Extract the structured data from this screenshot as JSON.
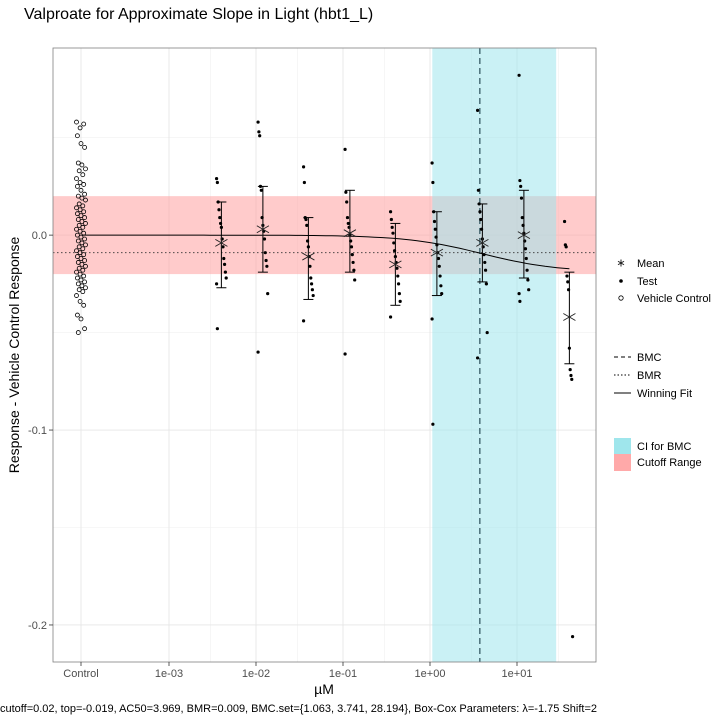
{
  "chart_data": {
    "type": "scatter",
    "title": "Valproate for Approximate Slope in Light (hbt1_L)",
    "xlabel": "µM",
    "ylabel": "Response - Vehicle Control Response",
    "x_scale": "log10",
    "x_tick_labels": [
      "Control",
      "1e-03",
      "1e-02",
      "1e-01",
      "1e+00",
      "1e+01"
    ],
    "y_tick_labels": [
      "0.0",
      "-0.1",
      "-0.2"
    ],
    "y_ticks": [
      0.0,
      -0.1,
      -0.2
    ],
    "ylim": [
      -0.219,
      0.096
    ],
    "grid": true,
    "legend_position": "right",
    "footer": "cutoff=0.02, top=-0.019, AC50=3.969, BMR=0.009, BMC.set={1.063, 3.741, 28.194}, Box-Cox Parameters: λ=-1.75 Shift=2",
    "bmc": 3.741,
    "bmr": 0.009,
    "bmc_ci": [
      1.063,
      28.194
    ],
    "cutoff_range": [
      -0.02,
      0.02
    ],
    "fit": {
      "top": -0.019,
      "ac50": 3.969,
      "n": 1
    },
    "legend": {
      "points": [
        {
          "label": "Mean",
          "symbol": "asterisk"
        },
        {
          "label": "Test",
          "symbol": "dot"
        },
        {
          "label": "Vehicle Control",
          "symbol": "circle"
        }
      ],
      "lines": [
        {
          "label": "BMC",
          "style": "dashed"
        },
        {
          "label": "BMR",
          "style": "dotted"
        },
        {
          "label": "Winning Fit",
          "style": "solid"
        }
      ],
      "fills": [
        {
          "label": "CI for BMC",
          "color": "#9fe6ec"
        },
        {
          "label": "Cutoff Range",
          "color": "#ffa9a9"
        }
      ]
    },
    "colors": {
      "ci_fill": "#9fe6ec",
      "cutoff_fill": "#ffa9a9",
      "bmc_line": "#2a4f5a"
    },
    "means": [
      {
        "x": 0.004,
        "mean": -0.004,
        "low": -0.027,
        "high": 0.017
      },
      {
        "x": 0.012,
        "mean": 0.003,
        "low": -0.019,
        "high": 0.025
      },
      {
        "x": 0.04,
        "mean": -0.011,
        "low": -0.033,
        "high": 0.009
      },
      {
        "x": 0.12,
        "mean": 0.001,
        "low": -0.019,
        "high": 0.023
      },
      {
        "x": 0.4,
        "mean": -0.015,
        "low": -0.036,
        "high": 0.006
      },
      {
        "x": 1.2,
        "mean": -0.009,
        "low": -0.031,
        "high": 0.012
      },
      {
        "x": 4.0,
        "mean": -0.004,
        "low": -0.024,
        "high": 0.016
      },
      {
        "x": 12.0,
        "mean": 0.0,
        "low": -0.022,
        "high": 0.023
      },
      {
        "x": 40.0,
        "mean": -0.042,
        "low": -0.066,
        "high": -0.019
      }
    ],
    "test_points": [
      {
        "x": 0.004,
        "y": [
          0.029,
          0.027,
          0.017,
          0.013,
          0.009,
          0.006,
          0.004,
          -0.002,
          -0.006,
          -0.012,
          -0.015,
          -0.019,
          -0.022,
          -0.025,
          -0.048
        ]
      },
      {
        "x": 0.012,
        "y": [
          0.058,
          0.053,
          0.051,
          0.025,
          0.023,
          0.009,
          0.005,
          0.002,
          -0.002,
          -0.009,
          -0.013,
          -0.016,
          -0.03,
          -0.06
        ]
      },
      {
        "x": 0.04,
        "y": [
          0.035,
          0.027,
          0.009,
          0.008,
          0.005,
          -0.003,
          -0.006,
          -0.011,
          -0.016,
          -0.022,
          -0.025,
          -0.028,
          -0.031,
          -0.044
        ]
      },
      {
        "x": 0.12,
        "y": [
          0.044,
          0.022,
          0.017,
          0.009,
          0.006,
          0.004,
          0.0,
          -0.003,
          -0.006,
          -0.01,
          -0.014,
          -0.018,
          -0.023,
          -0.061
        ]
      },
      {
        "x": 0.4,
        "y": [
          0.012,
          0.008,
          0.004,
          0.001,
          -0.004,
          -0.008,
          -0.011,
          -0.014,
          -0.017,
          -0.021,
          -0.025,
          -0.03,
          -0.034,
          -0.042
        ]
      },
      {
        "x": 1.2,
        "y": [
          0.037,
          0.027,
          0.012,
          0.007,
          0.003,
          -0.001,
          -0.005,
          -0.009,
          -0.012,
          -0.016,
          -0.021,
          -0.026,
          -0.03,
          -0.043,
          -0.097
        ]
      },
      {
        "x": 4.0,
        "y": [
          0.064,
          0.023,
          0.016,
          0.012,
          0.008,
          0.003,
          -0.002,
          -0.006,
          -0.01,
          -0.014,
          -0.018,
          -0.025,
          -0.05,
          -0.063
        ]
      },
      {
        "x": 12.0,
        "y": [
          0.082,
          0.028,
          0.025,
          0.019,
          0.009,
          0.005,
          0.001,
          -0.003,
          -0.007,
          -0.012,
          -0.018,
          -0.023,
          -0.028,
          -0.03,
          -0.034
        ]
      },
      {
        "x": 40.0,
        "y": [
          0.007,
          -0.005,
          -0.006,
          -0.021,
          -0.024,
          -0.028,
          -0.058,
          -0.069,
          -0.072,
          -0.074,
          -0.206
        ]
      }
    ],
    "vehicle_control": [
      0.058,
      0.055,
      0.057,
      0.051,
      0.047,
      0.045,
      0.037,
      0.036,
      0.034,
      0.033,
      0.031,
      0.029,
      0.027,
      0.026,
      0.025,
      0.023,
      0.021,
      0.02,
      0.019,
      0.018,
      0.016,
      0.015,
      0.014,
      0.013,
      0.012,
      0.011,
      0.01,
      0.009,
      0.008,
      0.007,
      0.006,
      0.005,
      0.004,
      0.003,
      0.002,
      0.001,
      0.0,
      -0.001,
      -0.002,
      -0.003,
      -0.004,
      -0.005,
      -0.006,
      -0.007,
      -0.008,
      -0.009,
      -0.01,
      -0.011,
      -0.012,
      -0.013,
      -0.014,
      -0.015,
      -0.016,
      -0.017,
      -0.018,
      -0.019,
      -0.02,
      -0.021,
      -0.022,
      -0.023,
      -0.024,
      -0.025,
      -0.026,
      -0.027,
      -0.028,
      -0.029,
      -0.031,
      -0.034,
      -0.036,
      -0.041,
      -0.043,
      -0.048,
      -0.05
    ]
  }
}
